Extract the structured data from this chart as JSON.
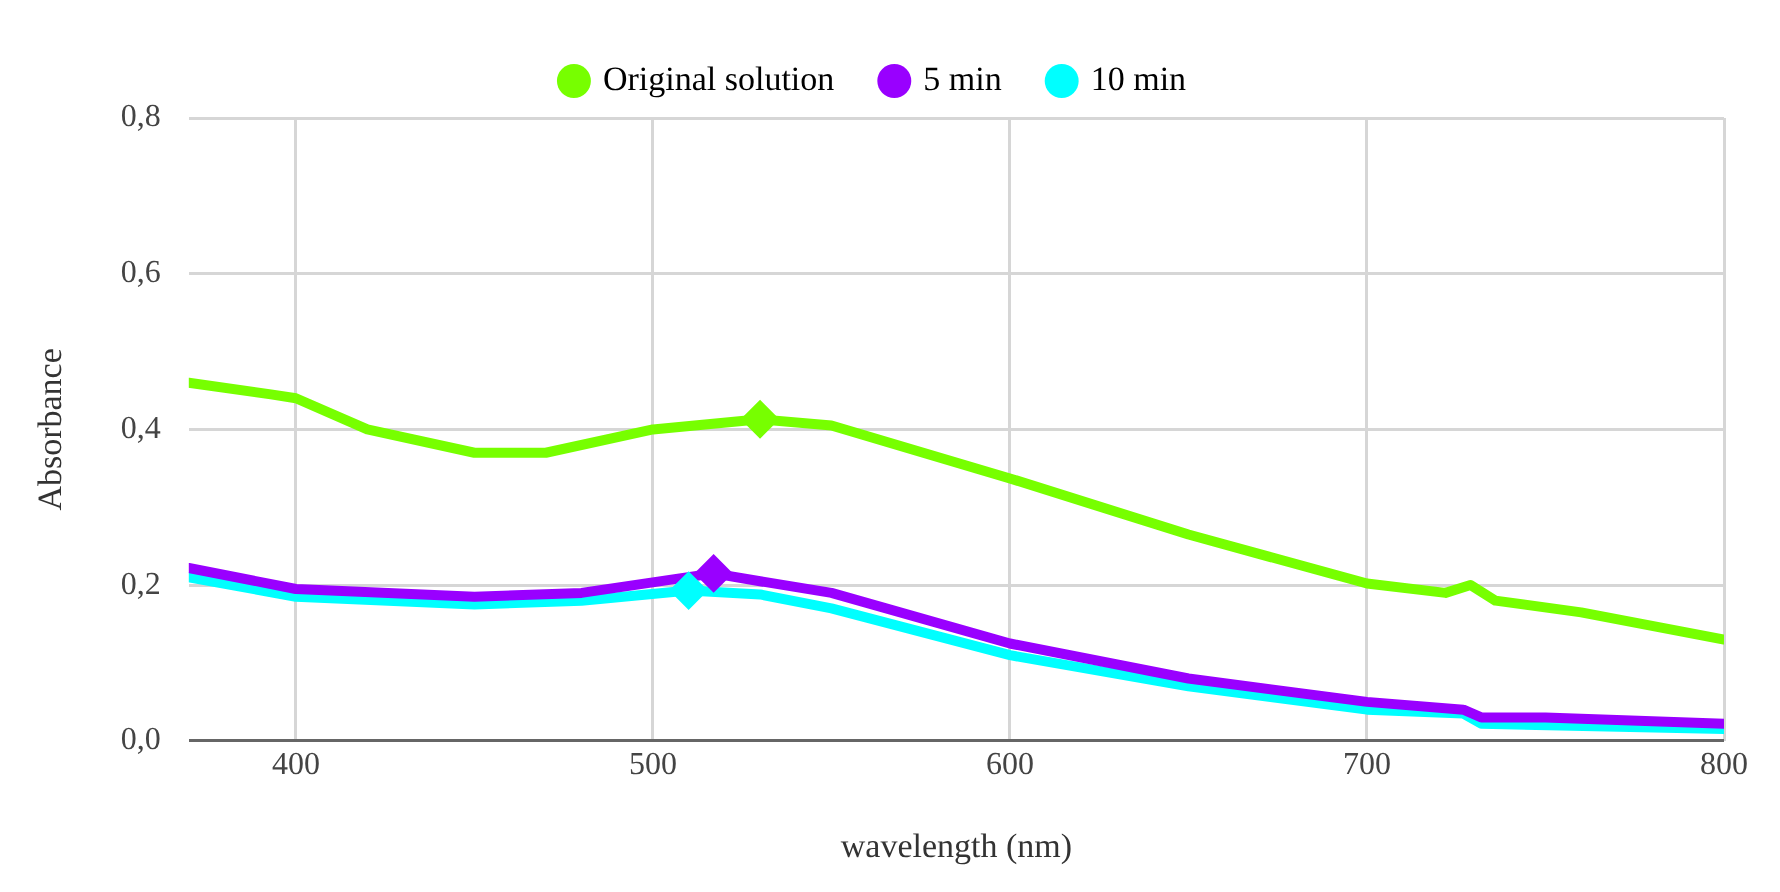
{
  "chart_data": {
    "type": "line",
    "xlabel": "wavelength (nm)",
    "ylabel": "Absorbance",
    "xlim": [
      370,
      800
    ],
    "xticks": [
      400,
      500,
      600,
      700,
      800
    ],
    "ylim": [
      0,
      0.8
    ],
    "yticks": [
      {
        "value": 0,
        "label": "0,0"
      },
      {
        "value": 0.2,
        "label": "0,2"
      },
      {
        "value": 0.4,
        "label": "0,4"
      },
      {
        "value": 0.6,
        "label": "0,6"
      },
      {
        "value": 0.8,
        "label": "0,8"
      }
    ],
    "grid": true,
    "legend": "top",
    "marker": "none",
    "line_style": "solid",
    "series": [
      {
        "name": "Original solution",
        "color": "#77ff00",
        "x": [
          370,
          393,
          400,
          420,
          450,
          470,
          500,
          530,
          550,
          600,
          650,
          700,
          722,
          729,
          736,
          760,
          800
        ],
        "values": [
          0.46,
          0.445,
          0.44,
          0.4,
          0.37,
          0.37,
          0.4,
          0.413,
          0.405,
          0.337,
          0.265,
          0.202,
          0.19,
          0.2,
          0.18,
          0.165,
          0.13
        ]
      },
      {
        "name": "5 min",
        "color": "#9900ff",
        "x": [
          370,
          400,
          450,
          480,
          517,
          530,
          550,
          600,
          650,
          700,
          727,
          732,
          750,
          800
        ],
        "values": [
          0.222,
          0.195,
          0.185,
          0.19,
          0.215,
          0.205,
          0.19,
          0.125,
          0.08,
          0.05,
          0.04,
          0.03,
          0.03,
          0.022
        ]
      },
      {
        "name": "10 min",
        "color": "#00ffff",
        "x": [
          370,
          400,
          450,
          480,
          510,
          530,
          550,
          600,
          650,
          700,
          727,
          732,
          800
        ],
        "values": [
          0.21,
          0.185,
          0.175,
          0.18,
          0.193,
          0.188,
          0.17,
          0.11,
          0.07,
          0.04,
          0.035,
          0.022,
          0.015
        ]
      },
      {
        "type": "scatter",
        "marker": "diamond",
        "color": "#77ff00",
        "x": [
          530
        ],
        "values": [
          0.413
        ]
      },
      {
        "type": "scatter",
        "marker": "diamond",
        "color": "#9900ff",
        "x": [
          517
        ],
        "values": [
          0.215
        ]
      },
      {
        "type": "scatter",
        "marker": "diamond",
        "color": "#00ffff",
        "x": [
          510
        ],
        "values": [
          0.193
        ]
      }
    ]
  }
}
